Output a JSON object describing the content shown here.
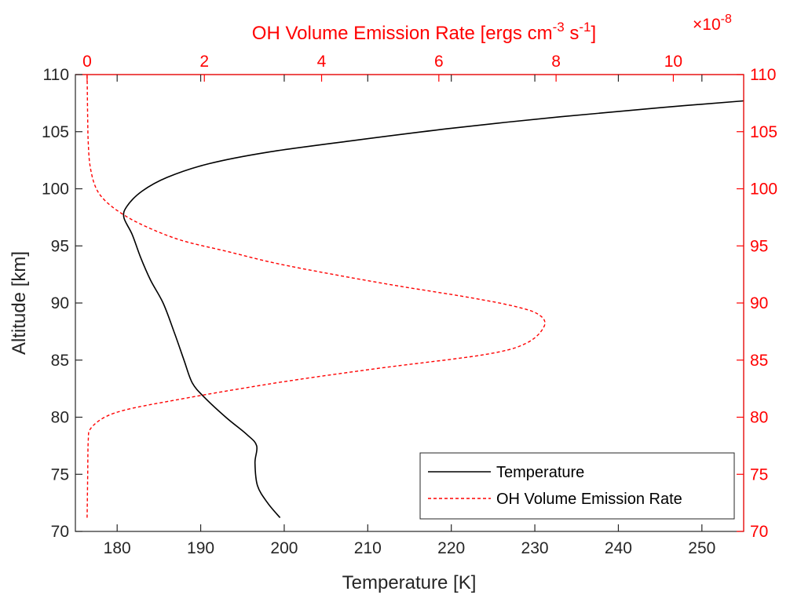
{
  "colors": {
    "temperature": "#000000",
    "emission": "#ff0000",
    "axis_left": "#262626",
    "axis_right": "#ff0000",
    "background": "#ffffff"
  },
  "chart_data": {
    "type": "line",
    "title": "",
    "grid": false,
    "legend_placement": "bottom-right",
    "legend": [
      "Temperature",
      "OH Volume Emission Rate"
    ],
    "axes": {
      "x_bottom": {
        "label": "Temperature [K]",
        "range": [
          175,
          255
        ],
        "ticks": [
          180,
          190,
          200,
          210,
          220,
          230,
          240,
          250
        ]
      },
      "x_top": {
        "label_main": "OH Volume Emission Rate [ergs cm",
        "label_sup1": "-3",
        "label_mid": " s",
        "label_sup2": "-1",
        "label_end": "]",
        "range": [
          -0.2,
          11.2
        ],
        "ticks": [
          0,
          2,
          4,
          6,
          8,
          10
        ],
        "exponent_prefix": "×10",
        "exponent_power": "-8",
        "color": "#ff0000"
      },
      "y_left": {
        "label": "Altitude [km]",
        "range": [
          70,
          110
        ],
        "ticks": [
          70,
          75,
          80,
          85,
          90,
          95,
          100,
          105,
          110
        ]
      },
      "y_right": {
        "label": "",
        "range": [
          70,
          110
        ],
        "ticks": [
          70,
          75,
          80,
          85,
          90,
          95,
          100,
          105,
          110
        ],
        "color": "#ff0000"
      }
    },
    "series": [
      {
        "name": "Temperature",
        "color": "#000000",
        "style": "solid",
        "axis": "bottom",
        "points": [
          [
            199.5,
            71.2
          ],
          [
            198,
            72.5
          ],
          [
            196.8,
            74
          ],
          [
            196.5,
            76
          ],
          [
            196.7,
            77.5
          ],
          [
            195.5,
            78.5
          ],
          [
            193,
            80
          ],
          [
            190.5,
            81.7
          ],
          [
            189,
            83
          ],
          [
            188,
            85
          ],
          [
            186.8,
            87.5
          ],
          [
            185.5,
            90
          ],
          [
            184,
            92
          ],
          [
            182.8,
            94
          ],
          [
            181.8,
            96
          ],
          [
            180.8,
            97.5
          ],
          [
            181.2,
            98.5
          ],
          [
            183,
            99.8
          ],
          [
            186,
            101
          ],
          [
            191,
            102.2
          ],
          [
            198,
            103.2
          ],
          [
            208,
            104.2
          ],
          [
            220,
            105.3
          ],
          [
            233,
            106.3
          ],
          [
            245,
            107.1
          ],
          [
            255,
            107.7
          ]
        ]
      },
      {
        "name": "OH Volume Emission Rate",
        "color": "#ff0000",
        "style": "dashed",
        "axis": "top",
        "points": [
          [
            0,
            71.2
          ],
          [
            0.01,
            75
          ],
          [
            0.02,
            78
          ],
          [
            0.06,
            79
          ],
          [
            0.3,
            80
          ],
          [
            0.7,
            80.7
          ],
          [
            1.5,
            81.5
          ],
          [
            2.5,
            82.4
          ],
          [
            3.6,
            83.3
          ],
          [
            5,
            84.3
          ],
          [
            6.8,
            85.5
          ],
          [
            7.5,
            86.5
          ],
          [
            7.8,
            88
          ],
          [
            7.7,
            89
          ],
          [
            7.3,
            89.7
          ],
          [
            6.5,
            90.5
          ],
          [
            5.3,
            91.5
          ],
          [
            4.2,
            92.5
          ],
          [
            3.2,
            93.5
          ],
          [
            2.4,
            94.5
          ],
          [
            1.6,
            95.5
          ],
          [
            1.0,
            96.7
          ],
          [
            0.6,
            97.8
          ],
          [
            0.3,
            99
          ],
          [
            0.14,
            100.2
          ],
          [
            0.05,
            102
          ],
          [
            0.02,
            104
          ],
          [
            0.01,
            106
          ],
          [
            0,
            110
          ]
        ]
      }
    ]
  }
}
